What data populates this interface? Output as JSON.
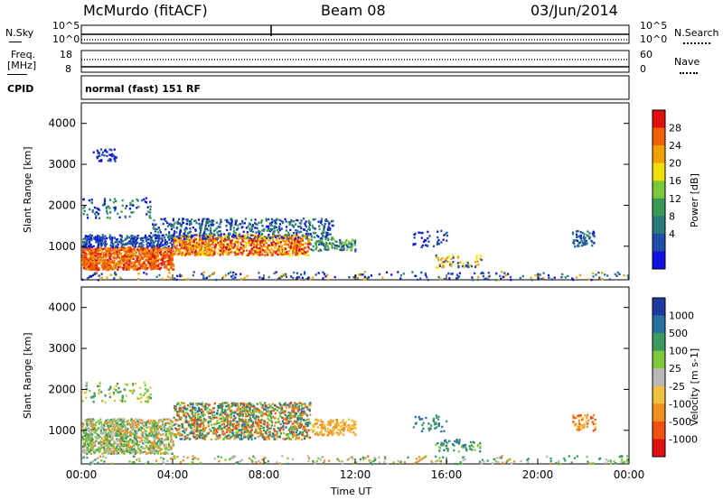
{
  "header": {
    "station": "McMurdo (fitACF)",
    "beam": "Beam 08",
    "date": "03/Jun/2014"
  },
  "noise_panel": {
    "left_label": "N.Sky",
    "right_label": "N.Search",
    "left_ticks": [
      "10^5",
      "10^0"
    ],
    "right_ticks": [
      "10^5",
      "10^0"
    ]
  },
  "freq_panel": {
    "left_label_1": "Freq.",
    "left_label_2": "[MHz]",
    "right_label": "Nave",
    "left_ticks": [
      "18",
      "8"
    ],
    "right_ticks": [
      "60",
      "0"
    ]
  },
  "cpid": {
    "label": "CPID",
    "value": "normal (fast) 151 RF"
  },
  "x_axis": {
    "label": "Time UT",
    "ticks": [
      "00:00",
      "04:00",
      "08:00",
      "12:00",
      "16:00",
      "20:00",
      "00:00"
    ]
  },
  "chart_data": [
    {
      "type": "heatmap",
      "title": "",
      "xlabel": "Time UT",
      "ylabel": "Slant Range [km]",
      "xlim": [
        0,
        24
      ],
      "ylim": [
        180,
        4500
      ],
      "yticks": [
        "1000",
        "2000",
        "3000",
        "4000"
      ],
      "colorbar_label": "Power [dB]",
      "colorbar_ticks": [
        "4",
        "8",
        "12",
        "16",
        "20",
        "24",
        "28"
      ],
      "colorbar_colors": [
        "#1010e0",
        "#1e4ea8",
        "#2a7a7a",
        "#3a9a55",
        "#7dc838",
        "#f0e000",
        "#f0a000",
        "#f06000",
        "#e01010"
      ]
    },
    {
      "type": "heatmap",
      "title": "",
      "xlabel": "Time UT",
      "ylabel": "Slant Range [km]",
      "xlim": [
        0,
        24
      ],
      "ylim": [
        180,
        4500
      ],
      "yticks": [
        "1000",
        "2000",
        "3000",
        "4000"
      ],
      "colorbar_label": "Velocity [m s-1]",
      "colorbar_ticks": [
        "1000",
        "500",
        "100",
        "25",
        "-25",
        "-100",
        "-500",
        "-1000"
      ],
      "colorbar_colors": [
        "#1e3aa0",
        "#2a70a0",
        "#3a9a60",
        "#7dc838",
        "#b8b8b8",
        "#f0c040",
        "#f09020",
        "#f05010",
        "#e01010"
      ]
    }
  ]
}
